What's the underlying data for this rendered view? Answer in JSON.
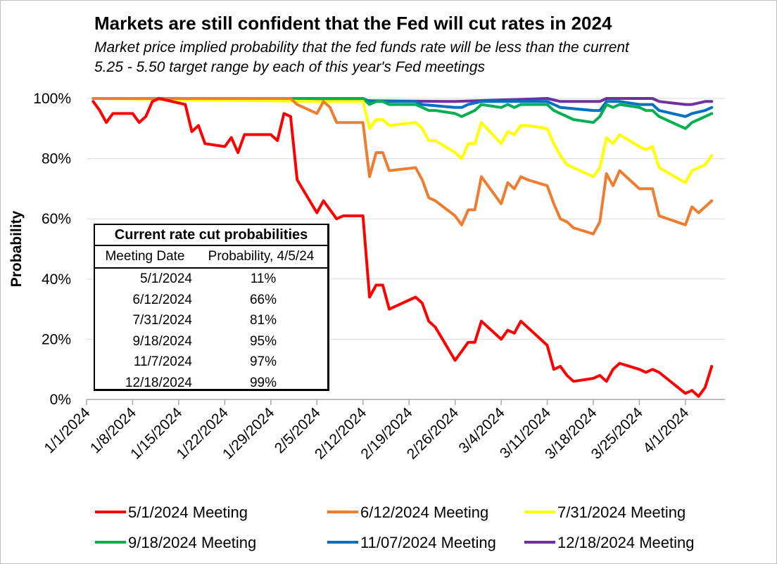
{
  "title": "Markets are still confident that the Fed will cut rates in 2024",
  "subtitle_line1": "Market price implied probability that the fed funds rate will be less than the current",
  "subtitle_line2": "5.25 - 5.50  target range by each of this year's Fed meetings",
  "rate_table": {
    "title": "Current rate cut probabilities",
    "headers": [
      "Meeting Date",
      "Probability, 4/5/24"
    ],
    "rows": [
      {
        "date": "5/1/2024",
        "prob": "11%"
      },
      {
        "date": "6/12/2024",
        "prob": "66%"
      },
      {
        "date": "7/31/2024",
        "prob": "81%"
      },
      {
        "date": "9/18/2024",
        "prob": "95%"
      },
      {
        "date": "11/7/2024",
        "prob": "97%"
      },
      {
        "date": "12/18/2024",
        "prob": "99%"
      }
    ]
  },
  "chart_data": {
    "type": "line",
    "ylabel": "Probability",
    "ylim": [
      0,
      100
    ],
    "y_ticks": [
      "0%",
      "20%",
      "40%",
      "60%",
      "80%",
      "100%"
    ],
    "x_tick_labels": [
      "1/1/2024",
      "1/8/2024",
      "1/15/2024",
      "1/22/2024",
      "1/29/2024",
      "2/5/2024",
      "2/12/2024",
      "2/19/2024",
      "2/26/2024",
      "3/4/2024",
      "3/11/2024",
      "3/18/2024",
      "3/25/2024",
      "4/1/2024"
    ],
    "xlim": [
      "2024-01-01",
      "2024-04-07"
    ],
    "grid": "horizontal",
    "legend_position": "bottom",
    "series": [
      {
        "name": "5/1/2024 Meeting",
        "color": "#ff0000",
        "points": [
          [
            "2024-01-02",
            99
          ],
          [
            "2024-01-03",
            96
          ],
          [
            "2024-01-04",
            92
          ],
          [
            "2024-01-05",
            95
          ],
          [
            "2024-01-08",
            95
          ],
          [
            "2024-01-09",
            92
          ],
          [
            "2024-01-10",
            94
          ],
          [
            "2024-01-11",
            99
          ],
          [
            "2024-01-12",
            100
          ],
          [
            "2024-01-16",
            98
          ],
          [
            "2024-01-17",
            89
          ],
          [
            "2024-01-18",
            91
          ],
          [
            "2024-01-19",
            85
          ],
          [
            "2024-01-22",
            84
          ],
          [
            "2024-01-23",
            87
          ],
          [
            "2024-01-24",
            82
          ],
          [
            "2024-01-25",
            88
          ],
          [
            "2024-01-26",
            88
          ],
          [
            "2024-01-29",
            88
          ],
          [
            "2024-01-30",
            86
          ],
          [
            "2024-01-31",
            95
          ],
          [
            "2024-02-01",
            94
          ],
          [
            "2024-02-02",
            73
          ],
          [
            "2024-02-05",
            62
          ],
          [
            "2024-02-06",
            66
          ],
          [
            "2024-02-07",
            63
          ],
          [
            "2024-02-08",
            60
          ],
          [
            "2024-02-09",
            61
          ],
          [
            "2024-02-12",
            61
          ],
          [
            "2024-02-13",
            34
          ],
          [
            "2024-02-14",
            38
          ],
          [
            "2024-02-15",
            38
          ],
          [
            "2024-02-16",
            30
          ],
          [
            "2024-02-20",
            34
          ],
          [
            "2024-02-21",
            32
          ],
          [
            "2024-02-22",
            26
          ],
          [
            "2024-02-23",
            24
          ],
          [
            "2024-02-26",
            13
          ],
          [
            "2024-02-27",
            16
          ],
          [
            "2024-02-28",
            19
          ],
          [
            "2024-02-29",
            19
          ],
          [
            "2024-03-01",
            26
          ],
          [
            "2024-03-04",
            20
          ],
          [
            "2024-03-05",
            23
          ],
          [
            "2024-03-06",
            22
          ],
          [
            "2024-03-07",
            26
          ],
          [
            "2024-03-08",
            24
          ],
          [
            "2024-03-11",
            18
          ],
          [
            "2024-03-12",
            10
          ],
          [
            "2024-03-13",
            11
          ],
          [
            "2024-03-14",
            8
          ],
          [
            "2024-03-15",
            6
          ],
          [
            "2024-03-18",
            7
          ],
          [
            "2024-03-19",
            8
          ],
          [
            "2024-03-20",
            6
          ],
          [
            "2024-03-21",
            10
          ],
          [
            "2024-03-22",
            12
          ],
          [
            "2024-03-25",
            10
          ],
          [
            "2024-03-26",
            9
          ],
          [
            "2024-03-27",
            10
          ],
          [
            "2024-03-28",
            9
          ],
          [
            "2024-04-01",
            2
          ],
          [
            "2024-04-02",
            3
          ],
          [
            "2024-04-03",
            1
          ],
          [
            "2024-04-04",
            4
          ],
          [
            "2024-04-05",
            11
          ]
        ]
      },
      {
        "name": "6/12/2024 Meeting",
        "color": "#ed7d31",
        "points": [
          [
            "2024-01-02",
            100
          ],
          [
            "2024-02-01",
            100
          ],
          [
            "2024-02-02",
            98
          ],
          [
            "2024-02-05",
            95
          ],
          [
            "2024-02-06",
            99
          ],
          [
            "2024-02-07",
            97
          ],
          [
            "2024-02-08",
            92
          ],
          [
            "2024-02-12",
            92
          ],
          [
            "2024-02-13",
            74
          ],
          [
            "2024-02-14",
            82
          ],
          [
            "2024-02-15",
            82
          ],
          [
            "2024-02-16",
            76
          ],
          [
            "2024-02-20",
            77
          ],
          [
            "2024-02-21",
            73
          ],
          [
            "2024-02-22",
            67
          ],
          [
            "2024-02-23",
            66
          ],
          [
            "2024-02-26",
            61
          ],
          [
            "2024-02-27",
            58
          ],
          [
            "2024-02-28",
            63
          ],
          [
            "2024-02-29",
            63
          ],
          [
            "2024-03-01",
            74
          ],
          [
            "2024-03-04",
            65
          ],
          [
            "2024-03-05",
            72
          ],
          [
            "2024-03-06",
            70
          ],
          [
            "2024-03-07",
            74
          ],
          [
            "2024-03-08",
            73
          ],
          [
            "2024-03-11",
            71
          ],
          [
            "2024-03-12",
            65
          ],
          [
            "2024-03-13",
            60
          ],
          [
            "2024-03-14",
            59
          ],
          [
            "2024-03-15",
            57
          ],
          [
            "2024-03-18",
            55
          ],
          [
            "2024-03-19",
            59
          ],
          [
            "2024-03-20",
            75
          ],
          [
            "2024-03-21",
            71
          ],
          [
            "2024-03-22",
            76
          ],
          [
            "2024-03-25",
            70
          ],
          [
            "2024-03-26",
            70
          ],
          [
            "2024-03-27",
            70
          ],
          [
            "2024-03-28",
            61
          ],
          [
            "2024-04-01",
            58
          ],
          [
            "2024-04-02",
            64
          ],
          [
            "2024-04-03",
            62
          ],
          [
            "2024-04-04",
            64
          ],
          [
            "2024-04-05",
            66
          ]
        ]
      },
      {
        "name": "7/31/2024 Meeting",
        "color": "#ffff00",
        "points": [
          [
            "2024-01-02",
            100
          ],
          [
            "2024-02-05",
            99
          ],
          [
            "2024-02-08",
            99
          ],
          [
            "2024-02-12",
            99
          ],
          [
            "2024-02-13",
            90
          ],
          [
            "2024-02-14",
            93
          ],
          [
            "2024-02-15",
            93
          ],
          [
            "2024-02-16",
            91
          ],
          [
            "2024-02-20",
            92
          ],
          [
            "2024-02-21",
            90
          ],
          [
            "2024-02-22",
            86
          ],
          [
            "2024-02-23",
            86
          ],
          [
            "2024-02-26",
            82
          ],
          [
            "2024-02-27",
            80
          ],
          [
            "2024-02-28",
            85
          ],
          [
            "2024-02-29",
            85
          ],
          [
            "2024-03-01",
            92
          ],
          [
            "2024-03-04",
            85
          ],
          [
            "2024-03-05",
            89
          ],
          [
            "2024-03-06",
            88
          ],
          [
            "2024-03-07",
            91
          ],
          [
            "2024-03-08",
            91
          ],
          [
            "2024-03-11",
            90
          ],
          [
            "2024-03-12",
            85
          ],
          [
            "2024-03-13",
            81
          ],
          [
            "2024-03-14",
            78
          ],
          [
            "2024-03-15",
            77
          ],
          [
            "2024-03-18",
            74
          ],
          [
            "2024-03-19",
            77
          ],
          [
            "2024-03-20",
            87
          ],
          [
            "2024-03-21",
            85
          ],
          [
            "2024-03-22",
            88
          ],
          [
            "2024-03-25",
            84
          ],
          [
            "2024-03-26",
            83
          ],
          [
            "2024-03-27",
            84
          ],
          [
            "2024-03-28",
            77
          ],
          [
            "2024-04-01",
            72
          ],
          [
            "2024-04-02",
            76
          ],
          [
            "2024-04-03",
            77
          ],
          [
            "2024-04-04",
            78
          ],
          [
            "2024-04-05",
            81
          ]
        ]
      },
      {
        "name": "9/18/2024 Meeting",
        "color": "#00b050",
        "points": [
          [
            "2024-01-02",
            100
          ],
          [
            "2024-02-12",
            100
          ],
          [
            "2024-02-13",
            98
          ],
          [
            "2024-02-14",
            99
          ],
          [
            "2024-02-15",
            99
          ],
          [
            "2024-02-16",
            98
          ],
          [
            "2024-02-20",
            98
          ],
          [
            "2024-02-21",
            97
          ],
          [
            "2024-02-22",
            96
          ],
          [
            "2024-02-23",
            96
          ],
          [
            "2024-02-26",
            95
          ],
          [
            "2024-02-27",
            94
          ],
          [
            "2024-02-28",
            95
          ],
          [
            "2024-02-29",
            96
          ],
          [
            "2024-03-01",
            98
          ],
          [
            "2024-03-04",
            97
          ],
          [
            "2024-03-05",
            98
          ],
          [
            "2024-03-06",
            97
          ],
          [
            "2024-03-07",
            98
          ],
          [
            "2024-03-08",
            98
          ],
          [
            "2024-03-11",
            98
          ],
          [
            "2024-03-12",
            96
          ],
          [
            "2024-03-13",
            95
          ],
          [
            "2024-03-14",
            94
          ],
          [
            "2024-03-15",
            93
          ],
          [
            "2024-03-18",
            92
          ],
          [
            "2024-03-19",
            94
          ],
          [
            "2024-03-20",
            98
          ],
          [
            "2024-03-21",
            97
          ],
          [
            "2024-03-22",
            98
          ],
          [
            "2024-03-25",
            97
          ],
          [
            "2024-03-26",
            96
          ],
          [
            "2024-03-27",
            96
          ],
          [
            "2024-03-28",
            94
          ],
          [
            "2024-04-01",
            90
          ],
          [
            "2024-04-02",
            92
          ],
          [
            "2024-04-03",
            93
          ],
          [
            "2024-04-04",
            94
          ],
          [
            "2024-04-05",
            95
          ]
        ]
      },
      {
        "name": "11/07/2024 Meeting",
        "color": "#0070c0",
        "points": [
          [
            "2024-01-02",
            100
          ],
          [
            "2024-02-12",
            100
          ],
          [
            "2024-02-13",
            99
          ],
          [
            "2024-02-20",
            99
          ],
          [
            "2024-02-21",
            98
          ],
          [
            "2024-02-26",
            97
          ],
          [
            "2024-02-27",
            97
          ],
          [
            "2024-02-28",
            98
          ],
          [
            "2024-03-01",
            99
          ],
          [
            "2024-03-08",
            99
          ],
          [
            "2024-03-11",
            99
          ],
          [
            "2024-03-12",
            98
          ],
          [
            "2024-03-13",
            97
          ],
          [
            "2024-03-18",
            96
          ],
          [
            "2024-03-19",
            96
          ],
          [
            "2024-03-20",
            99
          ],
          [
            "2024-03-22",
            99
          ],
          [
            "2024-03-25",
            98
          ],
          [
            "2024-03-27",
            98
          ],
          [
            "2024-03-28",
            96
          ],
          [
            "2024-04-01",
            94
          ],
          [
            "2024-04-02",
            95
          ],
          [
            "2024-04-04",
            96
          ],
          [
            "2024-04-05",
            97
          ]
        ]
      },
      {
        "name": "12/18/2024 Meeting",
        "color": "#7030a0",
        "points": [
          [
            "2024-01-02",
            100
          ],
          [
            "2024-02-26",
            99
          ],
          [
            "2024-03-11",
            100
          ],
          [
            "2024-03-13",
            99
          ],
          [
            "2024-03-18",
            99
          ],
          [
            "2024-03-19",
            99
          ],
          [
            "2024-03-20",
            100
          ],
          [
            "2024-03-27",
            100
          ],
          [
            "2024-03-28",
            99
          ],
          [
            "2024-04-01",
            98
          ],
          [
            "2024-04-02",
            98
          ],
          [
            "2024-04-04",
            99
          ],
          [
            "2024-04-05",
            99
          ]
        ]
      }
    ]
  }
}
